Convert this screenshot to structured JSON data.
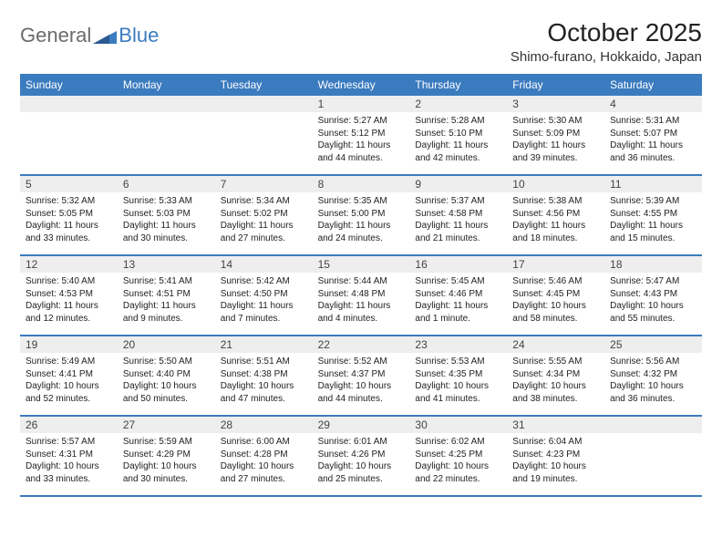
{
  "logo": {
    "general": "General",
    "blue": "Blue"
  },
  "title": "October 2025",
  "location": "Shimo-furano, Hokkaido, Japan",
  "colors": {
    "accent": "#3b7bbf",
    "header_bg": "#3b7bbf",
    "header_text": "#ffffff",
    "daynum_bg": "#eeeeee",
    "border": "#3b7bbf",
    "text": "#222222",
    "logo_gray": "#6b6b6b"
  },
  "typography": {
    "title_fontsize": 28,
    "location_fontsize": 15,
    "header_fontsize": 12,
    "daynum_fontsize": 12,
    "info_fontsize": 10
  },
  "day_names": [
    "Sunday",
    "Monday",
    "Tuesday",
    "Wednesday",
    "Thursday",
    "Friday",
    "Saturday"
  ],
  "weeks": [
    [
      {
        "n": "",
        "sr": "",
        "ss": "",
        "dl": ""
      },
      {
        "n": "",
        "sr": "",
        "ss": "",
        "dl": ""
      },
      {
        "n": "",
        "sr": "",
        "ss": "",
        "dl": ""
      },
      {
        "n": "1",
        "sr": "Sunrise: 5:27 AM",
        "ss": "Sunset: 5:12 PM",
        "dl": "Daylight: 11 hours and 44 minutes."
      },
      {
        "n": "2",
        "sr": "Sunrise: 5:28 AM",
        "ss": "Sunset: 5:10 PM",
        "dl": "Daylight: 11 hours and 42 minutes."
      },
      {
        "n": "3",
        "sr": "Sunrise: 5:30 AM",
        "ss": "Sunset: 5:09 PM",
        "dl": "Daylight: 11 hours and 39 minutes."
      },
      {
        "n": "4",
        "sr": "Sunrise: 5:31 AM",
        "ss": "Sunset: 5:07 PM",
        "dl": "Daylight: 11 hours and 36 minutes."
      }
    ],
    [
      {
        "n": "5",
        "sr": "Sunrise: 5:32 AM",
        "ss": "Sunset: 5:05 PM",
        "dl": "Daylight: 11 hours and 33 minutes."
      },
      {
        "n": "6",
        "sr": "Sunrise: 5:33 AM",
        "ss": "Sunset: 5:03 PM",
        "dl": "Daylight: 11 hours and 30 minutes."
      },
      {
        "n": "7",
        "sr": "Sunrise: 5:34 AM",
        "ss": "Sunset: 5:02 PM",
        "dl": "Daylight: 11 hours and 27 minutes."
      },
      {
        "n": "8",
        "sr": "Sunrise: 5:35 AM",
        "ss": "Sunset: 5:00 PM",
        "dl": "Daylight: 11 hours and 24 minutes."
      },
      {
        "n": "9",
        "sr": "Sunrise: 5:37 AM",
        "ss": "Sunset: 4:58 PM",
        "dl": "Daylight: 11 hours and 21 minutes."
      },
      {
        "n": "10",
        "sr": "Sunrise: 5:38 AM",
        "ss": "Sunset: 4:56 PM",
        "dl": "Daylight: 11 hours and 18 minutes."
      },
      {
        "n": "11",
        "sr": "Sunrise: 5:39 AM",
        "ss": "Sunset: 4:55 PM",
        "dl": "Daylight: 11 hours and 15 minutes."
      }
    ],
    [
      {
        "n": "12",
        "sr": "Sunrise: 5:40 AM",
        "ss": "Sunset: 4:53 PM",
        "dl": "Daylight: 11 hours and 12 minutes."
      },
      {
        "n": "13",
        "sr": "Sunrise: 5:41 AM",
        "ss": "Sunset: 4:51 PM",
        "dl": "Daylight: 11 hours and 9 minutes."
      },
      {
        "n": "14",
        "sr": "Sunrise: 5:42 AM",
        "ss": "Sunset: 4:50 PM",
        "dl": "Daylight: 11 hours and 7 minutes."
      },
      {
        "n": "15",
        "sr": "Sunrise: 5:44 AM",
        "ss": "Sunset: 4:48 PM",
        "dl": "Daylight: 11 hours and 4 minutes."
      },
      {
        "n": "16",
        "sr": "Sunrise: 5:45 AM",
        "ss": "Sunset: 4:46 PM",
        "dl": "Daylight: 11 hours and 1 minute."
      },
      {
        "n": "17",
        "sr": "Sunrise: 5:46 AM",
        "ss": "Sunset: 4:45 PM",
        "dl": "Daylight: 10 hours and 58 minutes."
      },
      {
        "n": "18",
        "sr": "Sunrise: 5:47 AM",
        "ss": "Sunset: 4:43 PM",
        "dl": "Daylight: 10 hours and 55 minutes."
      }
    ],
    [
      {
        "n": "19",
        "sr": "Sunrise: 5:49 AM",
        "ss": "Sunset: 4:41 PM",
        "dl": "Daylight: 10 hours and 52 minutes."
      },
      {
        "n": "20",
        "sr": "Sunrise: 5:50 AM",
        "ss": "Sunset: 4:40 PM",
        "dl": "Daylight: 10 hours and 50 minutes."
      },
      {
        "n": "21",
        "sr": "Sunrise: 5:51 AM",
        "ss": "Sunset: 4:38 PM",
        "dl": "Daylight: 10 hours and 47 minutes."
      },
      {
        "n": "22",
        "sr": "Sunrise: 5:52 AM",
        "ss": "Sunset: 4:37 PM",
        "dl": "Daylight: 10 hours and 44 minutes."
      },
      {
        "n": "23",
        "sr": "Sunrise: 5:53 AM",
        "ss": "Sunset: 4:35 PM",
        "dl": "Daylight: 10 hours and 41 minutes."
      },
      {
        "n": "24",
        "sr": "Sunrise: 5:55 AM",
        "ss": "Sunset: 4:34 PM",
        "dl": "Daylight: 10 hours and 38 minutes."
      },
      {
        "n": "25",
        "sr": "Sunrise: 5:56 AM",
        "ss": "Sunset: 4:32 PM",
        "dl": "Daylight: 10 hours and 36 minutes."
      }
    ],
    [
      {
        "n": "26",
        "sr": "Sunrise: 5:57 AM",
        "ss": "Sunset: 4:31 PM",
        "dl": "Daylight: 10 hours and 33 minutes."
      },
      {
        "n": "27",
        "sr": "Sunrise: 5:59 AM",
        "ss": "Sunset: 4:29 PM",
        "dl": "Daylight: 10 hours and 30 minutes."
      },
      {
        "n": "28",
        "sr": "Sunrise: 6:00 AM",
        "ss": "Sunset: 4:28 PM",
        "dl": "Daylight: 10 hours and 27 minutes."
      },
      {
        "n": "29",
        "sr": "Sunrise: 6:01 AM",
        "ss": "Sunset: 4:26 PM",
        "dl": "Daylight: 10 hours and 25 minutes."
      },
      {
        "n": "30",
        "sr": "Sunrise: 6:02 AM",
        "ss": "Sunset: 4:25 PM",
        "dl": "Daylight: 10 hours and 22 minutes."
      },
      {
        "n": "31",
        "sr": "Sunrise: 6:04 AM",
        "ss": "Sunset: 4:23 PM",
        "dl": "Daylight: 10 hours and 19 minutes."
      },
      {
        "n": "",
        "sr": "",
        "ss": "",
        "dl": ""
      }
    ]
  ]
}
